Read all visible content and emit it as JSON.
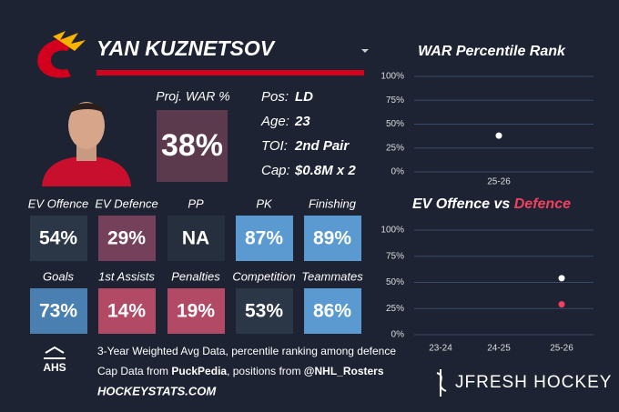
{
  "header": {
    "name": "YAN KUZNETSOV"
  },
  "proj_war": {
    "label": "Proj. WAR %",
    "value": "38%",
    "color": "#5c3a4d"
  },
  "info": [
    {
      "label": "Pos:",
      "value": "LD"
    },
    {
      "label": "Age:",
      "value": "23"
    },
    {
      "label": "TOI:",
      "value": "2nd Pair"
    },
    {
      "label": "Cap:",
      "value": "$0.8M x 2"
    }
  ],
  "tiles": [
    {
      "label": "EV Offence",
      "value": "54%",
      "color": "#2b3646"
    },
    {
      "label": "EV Defence",
      "value": "29%",
      "color": "#74405a"
    },
    {
      "label": "PP",
      "value": "NA",
      "color": "#262f3d"
    },
    {
      "label": "PK",
      "value": "87%",
      "color": "#5a9ad0"
    },
    {
      "label": "Finishing",
      "value": "89%",
      "color": "#5a9ad0"
    },
    {
      "label": "Goals",
      "value": "73%",
      "color": "#4a7fb2"
    },
    {
      "label": "1st Assists",
      "value": "14%",
      "color": "#b24a66"
    },
    {
      "label": "Penalties",
      "value": "19%",
      "color": "#b24a66"
    },
    {
      "label": "Competition",
      "value": "53%",
      "color": "#2b3646"
    },
    {
      "label": "Teammates",
      "value": "86%",
      "color": "#5a9ad0"
    }
  ],
  "chart_data": [
    {
      "type": "scatter",
      "title": "WAR Percentile Rank",
      "categories": [
        "25-26"
      ],
      "series": [
        {
          "color": "#ffffff",
          "values": [
            38
          ]
        }
      ],
      "ylim": [
        0,
        100
      ],
      "yticks": [
        {
          "value": 0,
          "label": "0%"
        },
        {
          "value": 25,
          "label": "25%"
        },
        {
          "value": 50,
          "label": "50%"
        },
        {
          "value": 75,
          "label": "75%"
        },
        {
          "value": 100,
          "label": "100%"
        }
      ],
      "grid": true
    },
    {
      "type": "scatter",
      "title": "EV Offence vs",
      "title_highlight": "Defence",
      "title_highlight_color": "#f0415f",
      "categories": [
        "23-24",
        "24-25",
        "25-26"
      ],
      "series": [
        {
          "color": "#ffffff",
          "values": [
            null,
            null,
            54
          ]
        },
        {
          "color": "#f0415f",
          "values": [
            null,
            null,
            29
          ]
        }
      ],
      "ylim": [
        0,
        100
      ],
      "yticks": [
        {
          "value": 0,
          "label": "0%"
        },
        {
          "value": 25,
          "label": "25%"
        },
        {
          "value": 50,
          "label": "50%"
        },
        {
          "value": 75,
          "label": "75%"
        },
        {
          "value": 100,
          "label": "100%"
        }
      ],
      "grid": true
    }
  ],
  "footer": {
    "logo": "AHS",
    "line1": "3-Year Weighted Avg Data, percentile ranking among defence",
    "line2a": "Cap Data from ",
    "line2b": "PuckPedia",
    "line2c": ", positions from ",
    "line2d": "@NHL_Rosters",
    "site": "HOCKEYSTATS.COM",
    "brand": "JFRESH HOCKEY"
  }
}
